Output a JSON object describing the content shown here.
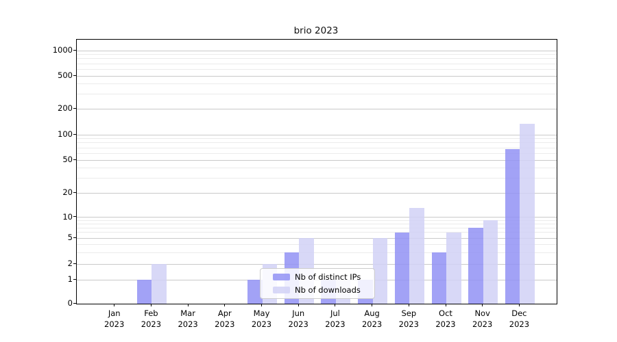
{
  "title": "brio 2023",
  "chart_data": {
    "type": "bar",
    "title": "brio 2023",
    "x_months": [
      "Jan",
      "Feb",
      "Mar",
      "Apr",
      "May",
      "Jun",
      "Jul",
      "Aug",
      "Sep",
      "Oct",
      "Nov",
      "Dec"
    ],
    "x_year": "2023",
    "series": [
      {
        "name": "Nb of distinct IPs",
        "color_hex": "#a8a8f6",
        "color_css": "rgba(146,146,244,0.85)",
        "values": [
          0,
          1,
          0,
          0,
          1,
          3,
          1,
          1,
          6,
          3,
          7,
          67
        ]
      },
      {
        "name": "Nb of downloads",
        "color_hex": "#dadaf8",
        "color_css": "rgba(209,209,246,0.85)",
        "values": [
          0,
          2,
          0,
          0,
          2,
          5,
          1,
          5,
          13,
          6,
          9,
          134
        ]
      }
    ],
    "y_axis": {
      "scale": "symlog",
      "range": [
        0,
        1000
      ],
      "tick_labels": [
        "0",
        "1",
        "2",
        "5",
        "10",
        "20",
        "50",
        "100",
        "200",
        "500",
        "1000"
      ],
      "ticks": [
        0,
        1,
        2,
        5,
        10,
        20,
        50,
        100,
        200,
        500,
        1000
      ],
      "minor_gridlines": [
        3,
        4,
        6,
        7,
        8,
        9,
        30,
        40,
        60,
        70,
        80,
        90,
        300,
        400,
        600,
        700,
        800,
        900
      ]
    },
    "legend": {
      "entries": [
        "Nb of distinct IPs",
        "Nb of downloads"
      ],
      "position": "lower center"
    },
    "grid": true
  },
  "colors": {
    "bar_distinct_ips": "#a8a8f6",
    "bar_downloads": "#dadaf8",
    "major_grid": "#c9c9c9",
    "minor_grid": "#ebebeb",
    "spine": "#000000",
    "legend_border": "#cccccc"
  }
}
